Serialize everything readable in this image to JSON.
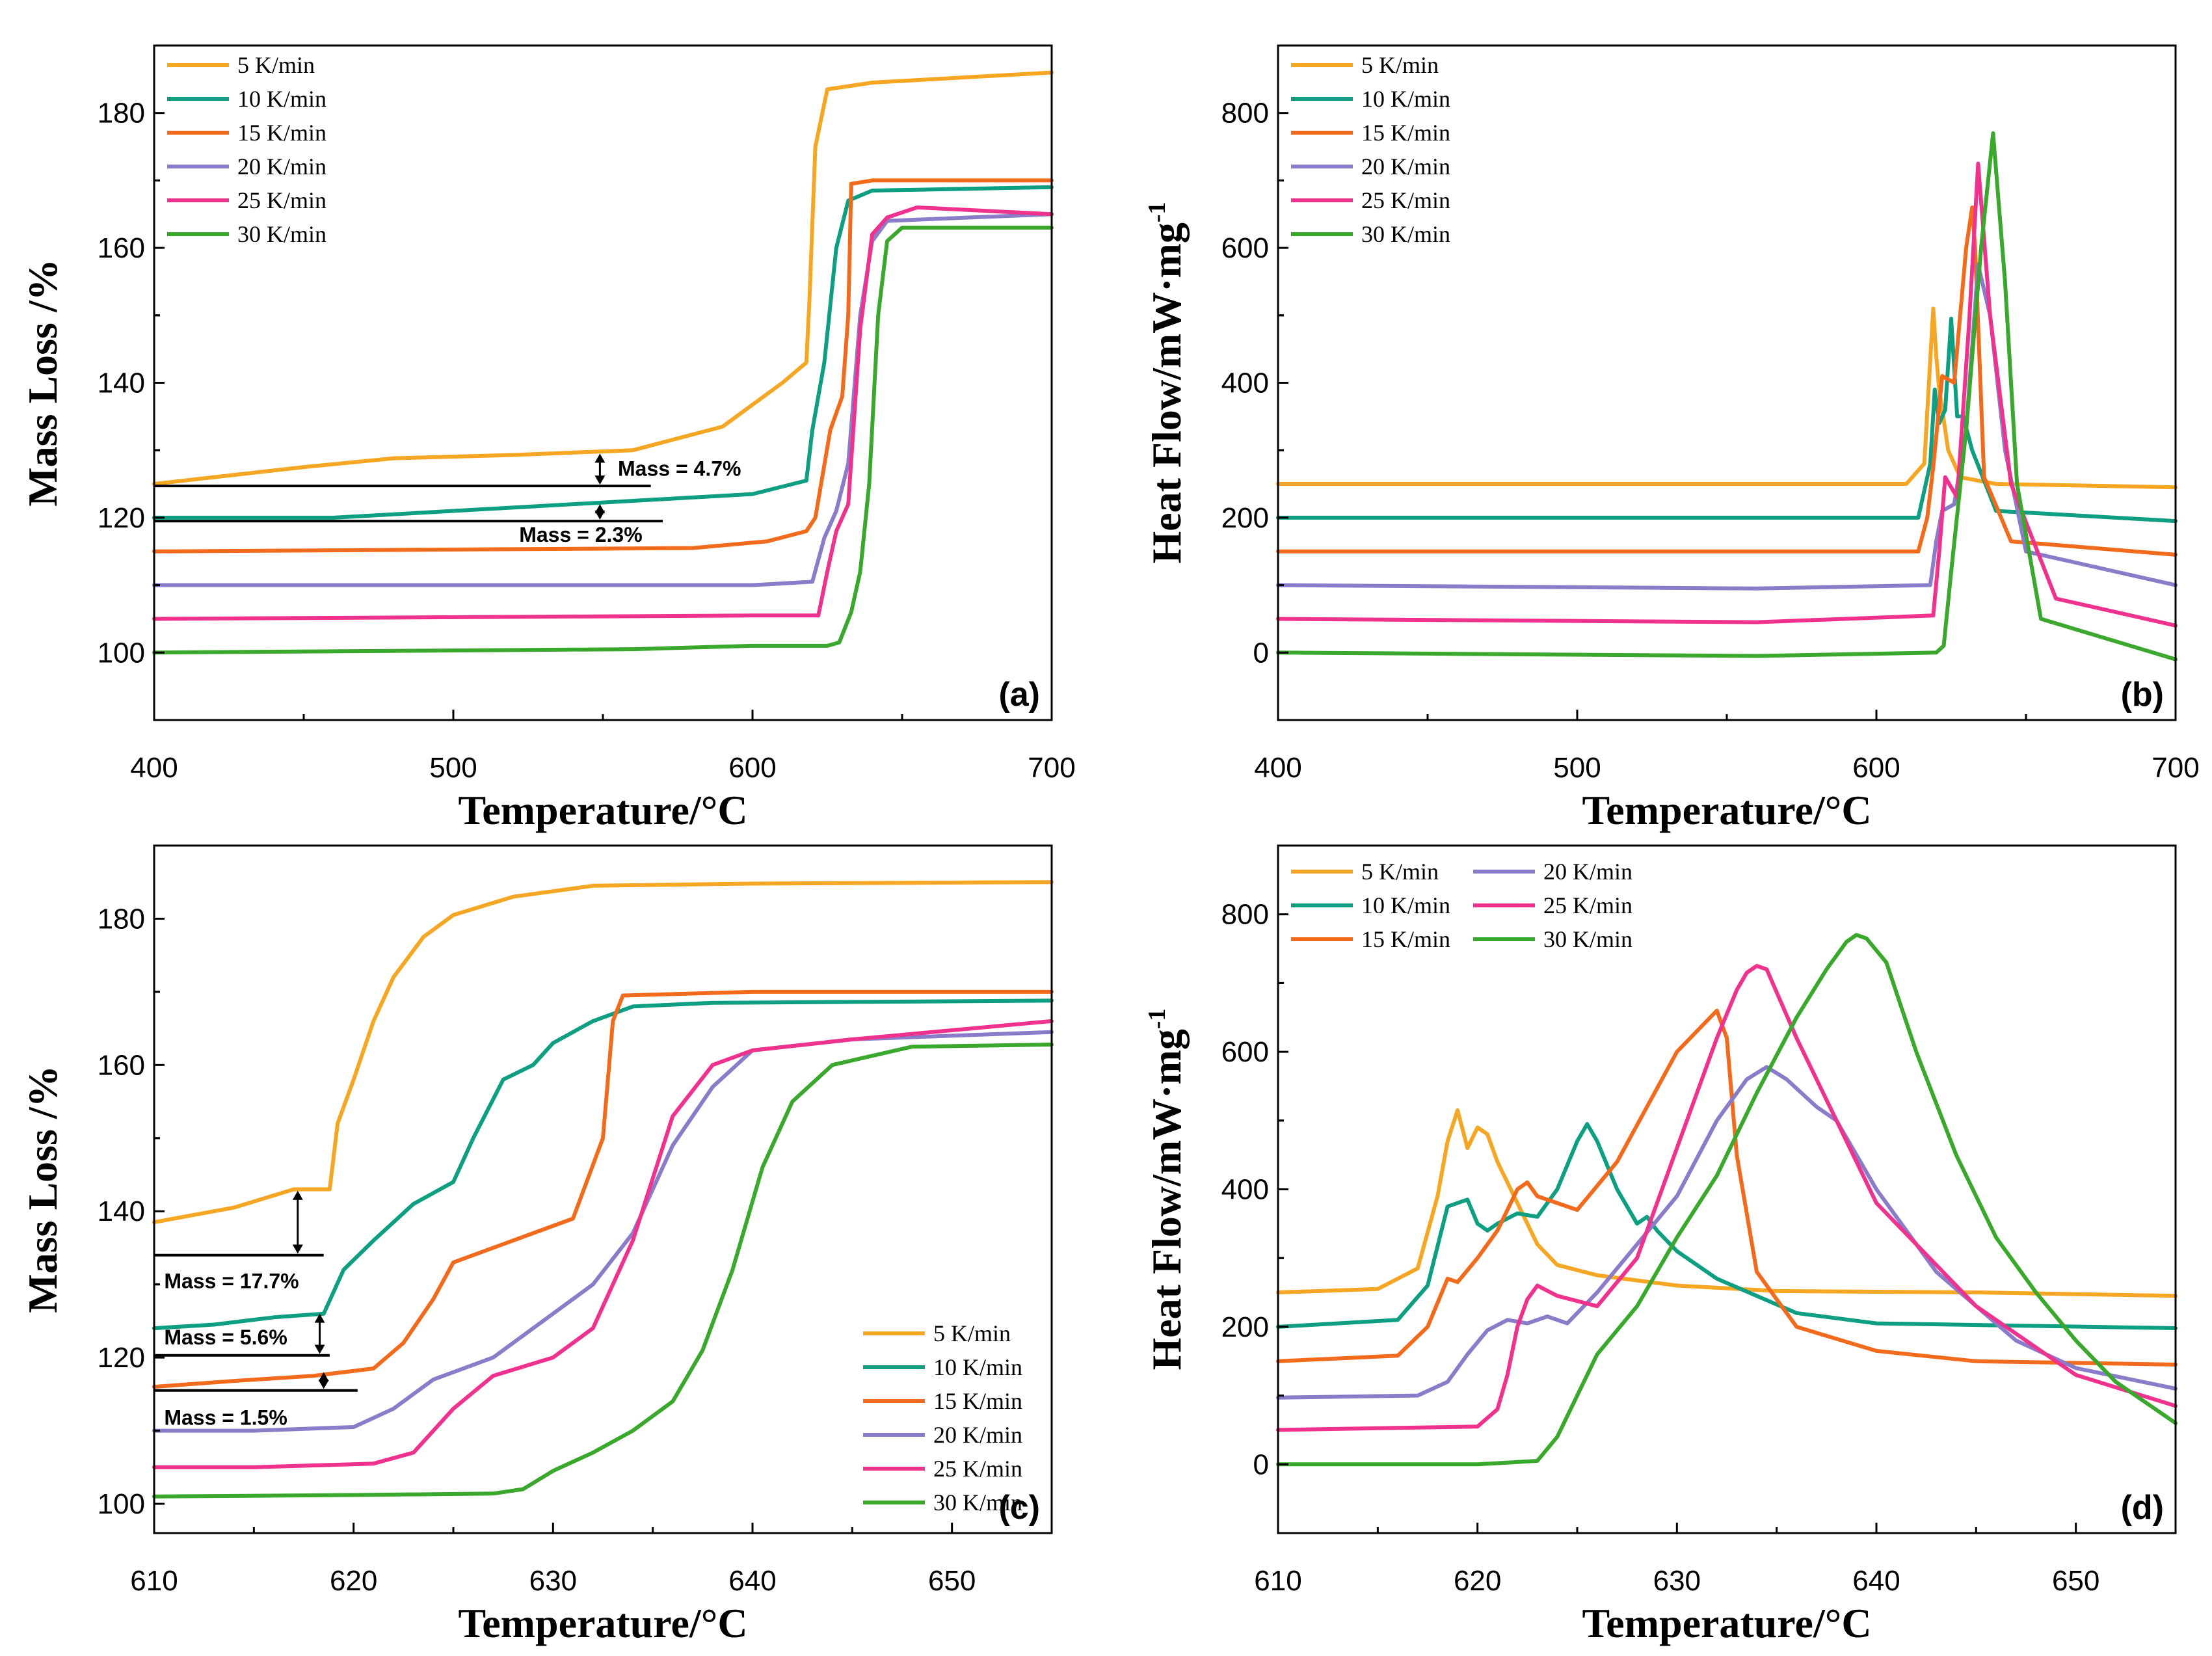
{
  "colors": {
    "5 K/min": "#F5A623",
    "10 K/min": "#0E9E82",
    "15 K/min": "#F26B1D",
    "20 K/min": "#8A7CC8",
    "25 K/min": "#F0328F",
    "30 K/min": "#3AA82C"
  },
  "chart_data": [
    {
      "panel": "(a)",
      "type": "line",
      "xlabel": "Temperature/°C",
      "ylabel": "Mass Loss /%",
      "xlim": [
        400,
        700
      ],
      "ylim": [
        90,
        190
      ],
      "xticks": [
        400,
        500,
        600,
        700
      ],
      "yticks": [
        100,
        120,
        140,
        160,
        180
      ],
      "legend_position": "top-left",
      "series": [
        {
          "name": "5 K/min",
          "x": [
            400,
            450,
            480,
            520,
            560,
            590,
            610,
            618,
            619,
            621,
            625,
            640,
            700
          ],
          "y": [
            125,
            127.5,
            128.8,
            129.3,
            130,
            133.5,
            140,
            143,
            152,
            175,
            183.5,
            184.5,
            186
          ]
        },
        {
          "name": "10 K/min",
          "x": [
            400,
            460,
            500,
            560,
            600,
            618,
            620,
            624,
            628,
            632,
            640,
            700
          ],
          "y": [
            120,
            120,
            121,
            122.5,
            123.5,
            125.5,
            133,
            143,
            160,
            167,
            168.5,
            169
          ]
        },
        {
          "name": "15 K/min",
          "x": [
            400,
            580,
            605,
            618,
            621,
            626,
            630,
            632,
            633,
            640,
            700
          ],
          "y": [
            115,
            115.5,
            116.5,
            118,
            120,
            133,
            138,
            150,
            169.5,
            170,
            170
          ]
        },
        {
          "name": "20 K/min",
          "x": [
            400,
            600,
            620,
            624,
            628,
            632,
            636,
            640,
            645,
            700
          ],
          "y": [
            110,
            110,
            110.5,
            117,
            121,
            128,
            150,
            161,
            164,
            165
          ]
        },
        {
          "name": "25 K/min",
          "x": [
            400,
            600,
            622,
            625,
            628,
            632,
            636,
            640,
            645,
            655,
            700
          ],
          "y": [
            105,
            105.5,
            105.5,
            112,
            118,
            122,
            148,
            162,
            164.5,
            166,
            165
          ]
        },
        {
          "name": "30 K/min",
          "x": [
            400,
            560,
            600,
            625,
            629,
            633,
            636,
            639,
            642,
            645,
            650,
            700
          ],
          "y": [
            100,
            100.5,
            101,
            101,
            101.5,
            106,
            112,
            125,
            150,
            161,
            163,
            163
          ]
        }
      ],
      "annotations": [
        {
          "text": "Mass = 4.7%"
        },
        {
          "text": "Mass = 2.3%"
        }
      ]
    },
    {
      "panel": "(b)",
      "type": "line",
      "xlabel": "Temperature/°C",
      "ylabel": "Heat Flow/mW·mg",
      "ylabel_sup": "-1",
      "xlim": [
        400,
        700
      ],
      "ylim": [
        -100,
        900
      ],
      "xticks": [
        400,
        500,
        600,
        700
      ],
      "yticks": [
        0,
        200,
        400,
        600,
        800
      ],
      "legend_position": "top-left",
      "series": [
        {
          "name": "5 K/min",
          "x": [
            400,
            500,
            610,
            616,
            619,
            620,
            621,
            624,
            628,
            640,
            700
          ],
          "y": [
            250,
            250,
            250,
            280,
            510,
            440,
            390,
            300,
            260,
            250,
            245
          ]
        },
        {
          "name": "10 K/min",
          "x": [
            400,
            500,
            614,
            618,
            619.5,
            621,
            623,
            625,
            627,
            629,
            632,
            640,
            700
          ],
          "y": [
            200,
            200,
            200,
            280,
            390,
            340,
            360,
            495,
            350,
            350,
            300,
            210,
            195
          ]
        },
        {
          "name": "15 K/min",
          "x": [
            400,
            500,
            614,
            617,
            619,
            622,
            626,
            630,
            632,
            633,
            636,
            645,
            700
          ],
          "y": [
            150,
            150,
            150,
            200,
            275,
            410,
            400,
            600,
            660,
            600,
            260,
            165,
            145
          ]
        },
        {
          "name": "20 K/min",
          "x": [
            400,
            560,
            618,
            620,
            622,
            626,
            630,
            634,
            638,
            643,
            650,
            700
          ],
          "y": [
            100,
            95,
            100,
            165,
            210,
            220,
            330,
            575,
            500,
            300,
            150,
            100
          ]
        },
        {
          "name": "25 K/min",
          "x": [
            400,
            560,
            619,
            621,
            623,
            627,
            631,
            634,
            638,
            645,
            660,
            700
          ],
          "y": [
            50,
            45,
            55,
            150,
            260,
            230,
            490,
            725,
            500,
            250,
            80,
            40
          ]
        },
        {
          "name": "30 K/min",
          "x": [
            400,
            560,
            620,
            622.5,
            625,
            630,
            635,
            639,
            643,
            647,
            655,
            700
          ],
          "y": [
            0,
            -5,
            0,
            10,
            120,
            330,
            600,
            770,
            550,
            250,
            50,
            -10
          ]
        }
      ]
    },
    {
      "panel": "(c)",
      "type": "line",
      "xlabel": "Temperature/°C",
      "ylabel": "Mass Loss /%",
      "xlim": [
        610,
        655
      ],
      "ylim": [
        96,
        190
      ],
      "xticks": [
        610,
        620,
        630,
        640,
        650
      ],
      "yticks": [
        100,
        120,
        140,
        160,
        180
      ],
      "legend_position": "bottom-right",
      "series": [
        {
          "name": "5 K/min",
          "x": [
            610,
            614,
            617,
            618.8,
            619.2,
            620,
            621,
            622,
            623.5,
            625,
            628,
            632,
            640,
            655
          ],
          "y": [
            138.5,
            140.5,
            143,
            143,
            152,
            158,
            166,
            172,
            177.5,
            180.5,
            183,
            184.5,
            184.8,
            185
          ]
        },
        {
          "name": "10 K/min",
          "x": [
            610,
            613,
            616,
            618.5,
            619.5,
            621,
            623,
            625,
            626,
            627.5,
            629,
            630,
            632,
            634,
            638,
            655
          ],
          "y": [
            124,
            124.5,
            125.5,
            126,
            132,
            136,
            141,
            144,
            150,
            158,
            160,
            163,
            166,
            168,
            168.5,
            168.8
          ]
        },
        {
          "name": "15 K/min",
          "x": [
            610,
            614,
            618,
            621,
            622.5,
            624,
            625,
            628,
            631,
            632.5,
            633,
            633.5,
            640,
            655
          ],
          "y": [
            116,
            116.8,
            117.5,
            118.5,
            122,
            128,
            133,
            136,
            139,
            150,
            166,
            169.5,
            170,
            170
          ]
        },
        {
          "name": "20 K/min",
          "x": [
            610,
            615,
            620,
            622,
            624,
            627,
            630,
            632,
            634,
            636,
            638,
            640,
            645,
            655
          ],
          "y": [
            110,
            110,
            110.5,
            113,
            117,
            120,
            126,
            130,
            137,
            149,
            157,
            162,
            163.5,
            164.5
          ]
        },
        {
          "name": "25 K/min",
          "x": [
            610,
            615,
            621,
            623,
            625,
            627,
            630,
            632,
            634,
            636,
            638,
            640,
            645,
            655
          ],
          "y": [
            105,
            105,
            105.5,
            107,
            113,
            117.5,
            120,
            124,
            136,
            153,
            160,
            162,
            163.5,
            166
          ]
        },
        {
          "name": "30 K/min",
          "x": [
            610,
            620,
            627,
            628.5,
            630,
            632,
            634,
            636,
            637.5,
            639,
            640.5,
            642,
            644,
            648,
            655
          ],
          "y": [
            101,
            101.2,
            101.4,
            102,
            104.5,
            107,
            110,
            114,
            121,
            132,
            146,
            155,
            160,
            162.5,
            162.8
          ]
        }
      ],
      "annotations": [
        {
          "text": "Mass = 17.7%"
        },
        {
          "text": "Mass = 5.6%"
        },
        {
          "text": "Mass = 1.5%"
        }
      ]
    },
    {
      "panel": "(d)",
      "type": "line",
      "xlabel": "Temperature/°C",
      "ylabel": "Heat Flow/mW·mg",
      "ylabel_sup": "-1",
      "xlim": [
        610,
        655
      ],
      "ylim": [
        -100,
        900
      ],
      "xticks": [
        610,
        620,
        630,
        640,
        650
      ],
      "yticks": [
        0,
        200,
        400,
        600,
        800
      ],
      "legend_position": "top-left",
      "legend_columns": 2,
      "series": [
        {
          "name": "5 K/min",
          "x": [
            610,
            615,
            617,
            618,
            618.5,
            619,
            619.5,
            620,
            620.5,
            621,
            622,
            623,
            624,
            626,
            630,
            635,
            645,
            655
          ],
          "y": [
            250,
            255,
            285,
            390,
            470,
            515,
            460,
            490,
            480,
            440,
            380,
            320,
            290,
            275,
            260,
            252,
            250,
            245
          ]
        },
        {
          "name": "10 K/min",
          "x": [
            610,
            616,
            617.5,
            618.5,
            619,
            619.5,
            620,
            620.5,
            621,
            622,
            623,
            624,
            625,
            625.5,
            626,
            627,
            628,
            628.5,
            629,
            630,
            632,
            636,
            640,
            655
          ],
          "y": [
            200,
            210,
            260,
            375,
            380,
            385,
            350,
            340,
            350,
            365,
            360,
            400,
            470,
            495,
            470,
            400,
            350,
            360,
            340,
            310,
            270,
            220,
            205,
            198
          ]
        },
        {
          "name": "15 K/min",
          "x": [
            610,
            616,
            617.5,
            618.5,
            619,
            620,
            621,
            622,
            622.5,
            623,
            624,
            625,
            627,
            630,
            632,
            632.5,
            633,
            634,
            636,
            640,
            645,
            655
          ],
          "y": [
            150,
            158,
            200,
            270,
            265,
            300,
            340,
            400,
            410,
            390,
            380,
            370,
            440,
            600,
            660,
            620,
            450,
            280,
            200,
            165,
            150,
            145
          ]
        },
        {
          "name": "20 K/min",
          "x": [
            610,
            617,
            618.5,
            619.5,
            620.5,
            621.5,
            622.5,
            623.5,
            624.5,
            626,
            628,
            630,
            632,
            633.5,
            634.5,
            635.5,
            637,
            638,
            640,
            643,
            647,
            650,
            655
          ],
          "y": [
            97,
            100,
            120,
            160,
            195,
            210,
            205,
            215,
            205,
            250,
            320,
            390,
            500,
            560,
            578,
            560,
            520,
            500,
            400,
            280,
            180,
            140,
            110
          ]
        },
        {
          "name": "25 K/min",
          "x": [
            610,
            620,
            621,
            621.5,
            622,
            622.5,
            623,
            624,
            626,
            628,
            629,
            630,
            631,
            632,
            633,
            633.5,
            634,
            634.5,
            636,
            638,
            640,
            645,
            650,
            655
          ],
          "y": [
            50,
            55,
            80,
            130,
            200,
            240,
            260,
            245,
            230,
            300,
            380,
            460,
            540,
            620,
            690,
            715,
            725,
            720,
            620,
            500,
            380,
            230,
            130,
            85
          ]
        },
        {
          "name": "30 K/min",
          "x": [
            610,
            620,
            623,
            624,
            625,
            626,
            628,
            630,
            632,
            634,
            636,
            637.5,
            638.5,
            639,
            639.5,
            640.5,
            642,
            644,
            646,
            648,
            650,
            652,
            655
          ],
          "y": [
            0,
            0,
            5,
            40,
            100,
            160,
            230,
            330,
            420,
            540,
            650,
            720,
            760,
            770,
            765,
            730,
            600,
            450,
            330,
            250,
            180,
            120,
            60
          ]
        }
      ]
    }
  ]
}
